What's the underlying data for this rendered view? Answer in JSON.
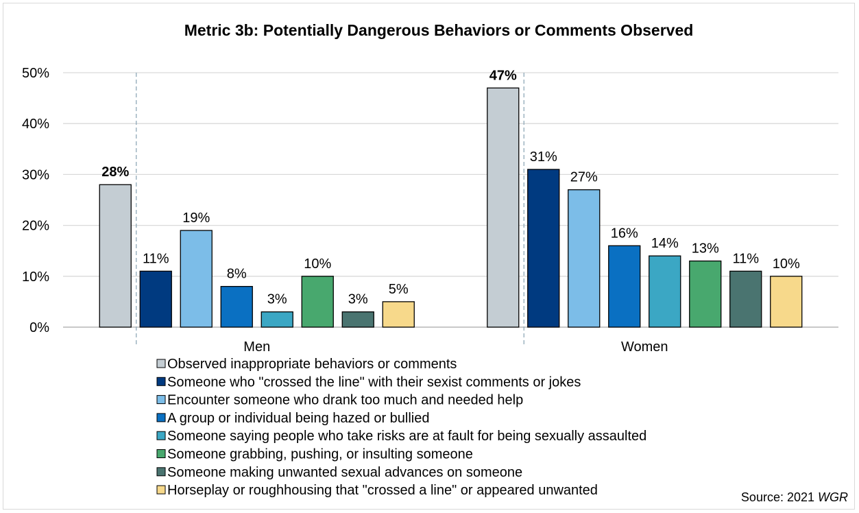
{
  "chart_data": {
    "type": "bar",
    "title": "Metric 3b: Potentially Dangerous Behaviors or Comments Observed",
    "categories": [
      "Men",
      "Women"
    ],
    "yticks": [
      "0%",
      "10%",
      "20%",
      "30%",
      "40%",
      "50%"
    ],
    "ylim": [
      0,
      50
    ],
    "grid": true,
    "legend_position": "bottom",
    "series": [
      {
        "name": "Observed inappropriate behaviors or comments",
        "values": [
          28,
          47
        ],
        "labels": [
          "28%",
          "47%"
        ],
        "color": "#c4cdd3",
        "bold_label": true
      },
      {
        "name": "Someone who \"crossed the line\" with their sexist comments or jokes",
        "values": [
          11,
          31
        ],
        "labels": [
          "11%",
          "31%"
        ],
        "color": "#003a80"
      },
      {
        "name": "Encounter someone who drank too much and needed help",
        "values": [
          19,
          27
        ],
        "labels": [
          "19%",
          "27%"
        ],
        "color": "#7cbde8"
      },
      {
        "name": "A group or individual being hazed or bullied",
        "values": [
          8,
          16
        ],
        "labels": [
          "8%",
          "16%"
        ],
        "color": "#0a70c2"
      },
      {
        "name": "Someone saying people who take risks are at fault for being sexually assaulted",
        "values": [
          3,
          14
        ],
        "labels": [
          "3%",
          "14%"
        ],
        "color": "#3ba7c4"
      },
      {
        "name": "Someone grabbing, pushing, or insulting someone",
        "values": [
          10,
          13
        ],
        "labels": [
          "10%",
          "13%"
        ],
        "color": "#48a86e"
      },
      {
        "name": "Someone making unwanted sexual advances on someone",
        "values": [
          3,
          11
        ],
        "labels": [
          "3%",
          "11%"
        ],
        "color": "#4a7470"
      },
      {
        "name": "Horseplay or roughhousing that \"crossed a line\" or appeared unwanted",
        "values": [
          5,
          10
        ],
        "labels": [
          "5%",
          "10%"
        ],
        "color": "#f7d98b"
      }
    ],
    "source_prefix": "Source: 2021 ",
    "source_emph": "WGR"
  }
}
